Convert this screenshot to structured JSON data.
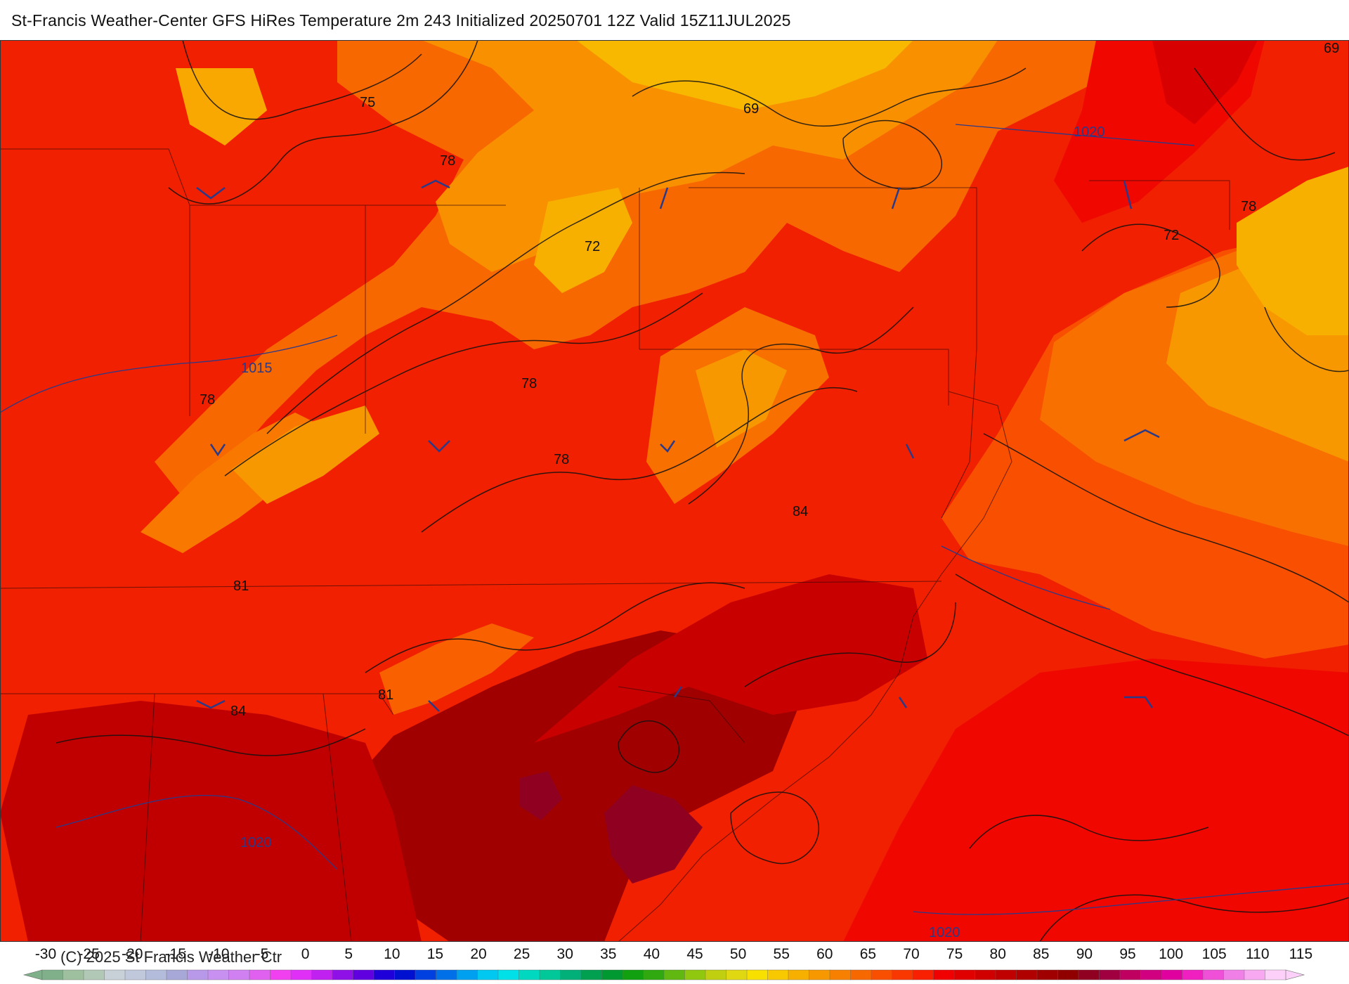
{
  "title": "St-Francis Weather-Center GFS HiRes Temperature 2m  243 Initialized 20250701 12Z Valid 15Z11JUL2025",
  "copyright": "(C) 2025 St Francis Weather Ctr",
  "colorbar": {
    "ticks": [
      "-30",
      "-25",
      "-20",
      "-15",
      "-10",
      "-5",
      "0",
      "5",
      "10",
      "15",
      "20",
      "25",
      "30",
      "35",
      "40",
      "45",
      "50",
      "55",
      "60",
      "65",
      "70",
      "75",
      "80",
      "85",
      "90",
      "95",
      "100",
      "105",
      "110",
      "115"
    ],
    "colors": [
      "#7fb08a",
      "#9ec09e",
      "#b2c8b6",
      "#c8d0d8",
      "#c0c8dc",
      "#b4bcdc",
      "#a8a8d8",
      "#b898e8",
      "#c890f0",
      "#d080f0",
      "#e060f0",
      "#f040f0",
      "#e030f8",
      "#c020f0",
      "#9010e8",
      "#6000e0",
      "#2000d8",
      "#0010d0",
      "#0040e0",
      "#0070e8",
      "#00a0f0",
      "#00c8f0",
      "#00e0e8",
      "#00d8c0",
      "#00c898",
      "#00b078",
      "#00a050",
      "#009830",
      "#10a010",
      "#30a810",
      "#60b810",
      "#90c810",
      "#c0d010",
      "#e0d810",
      "#f8e000",
      "#f8c800",
      "#f8b000",
      "#f89800",
      "#f88000",
      "#f86800",
      "#f85000",
      "#f83800",
      "#f82000",
      "#f00000",
      "#e00000",
      "#d00000",
      "#c00000",
      "#b00000",
      "#a00000",
      "#900000",
      "#900020",
      "#a00040",
      "#c00060",
      "#d00080",
      "#e000a0",
      "#f020c0",
      "#f050d8",
      "#f080e8",
      "#f8a8f0",
      "#fcd0f8"
    ]
  },
  "contours": {
    "temperature_labels": [
      "75",
      "78",
      "69",
      "1020",
      "69",
      "72",
      "1015",
      "78",
      "78",
      "78",
      "72",
      "78",
      "84",
      "81",
      "81",
      "84",
      "78"
    ],
    "pressure_labels": [
      "1015",
      "1020",
      "1020",
      "1020"
    ]
  },
  "map_labels": {
    "t75": "75",
    "t78a": "78",
    "t69a": "69",
    "t69b": "69",
    "t72a": "72",
    "t78b": "78",
    "t78c": "78",
    "t78d": "78",
    "t78e": "78",
    "t72b": "72",
    "t84a": "84",
    "t81a": "81",
    "t81b": "81",
    "t84b": "84",
    "p1015": "1015",
    "p1020a": "1020",
    "p1020b": "1020",
    "p1020c": "1020"
  },
  "colors": {
    "hot_red": "#f01800",
    "deep_red": "#a00000",
    "orange": "#f87000",
    "gold": "#f8b800",
    "ocean_orange": "#f85000",
    "pressure_line": "#2a3a8a"
  }
}
